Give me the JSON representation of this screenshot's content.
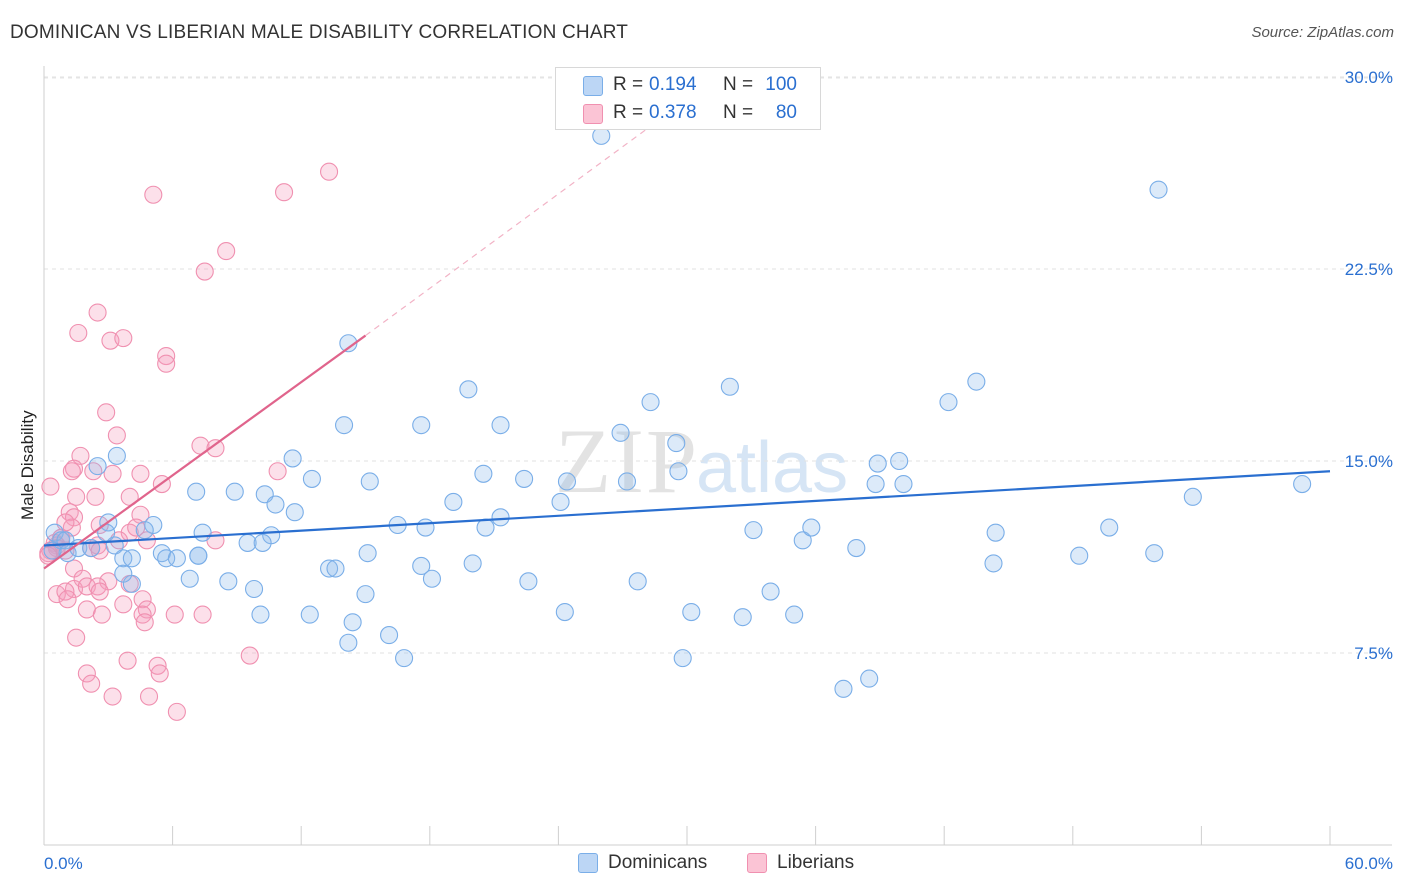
{
  "header": {
    "title": "DOMINICAN VS LIBERIAN MALE DISABILITY CORRELATION CHART",
    "source": "Source: ZipAtlas.com"
  },
  "legend_top": {
    "rows": [
      {
        "r_label": "R =",
        "r_value": "0.194",
        "n_label": "N =",
        "n_value": "100"
      },
      {
        "r_label": "R =",
        "r_value": "0.378",
        "n_label": "N =",
        "n_value": "80"
      }
    ]
  },
  "legend_bottom": {
    "items": [
      {
        "label": "Dominicans"
      },
      {
        "label": "Liberians"
      }
    ]
  },
  "watermark": {
    "zip": "ZIP",
    "atlas": "atlas"
  },
  "chart_data": {
    "type": "scatter",
    "title": "DOMINICAN VS LIBERIAN MALE DISABILITY CORRELATION CHART",
    "xlabel": "",
    "ylabel": "Male Disability",
    "xlim": [
      0,
      60
    ],
    "ylim": [
      0,
      31
    ],
    "x_tick_labels": [
      "0.0%",
      "60.0%"
    ],
    "y_ticks": [
      7.5,
      15.0,
      22.5,
      30.0
    ],
    "y_tick_labels": [
      "7.5%",
      "15.0%",
      "22.5%",
      "30.0%"
    ],
    "grid": "horizontal dashed",
    "legend_position": "top-center and bottom",
    "colors": {
      "Dominicans": "#7aaee8",
      "Liberians": "#f090b0",
      "dom_line": "#2a6fd0",
      "lib_line": "#e0648c"
    },
    "series": [
      {
        "name": "Dominicans",
        "trend": {
          "x0": 0,
          "y0": 11.7,
          "x1": 60,
          "y1": 14.6
        },
        "points": [
          [
            26,
            27.7
          ],
          [
            52,
            25.6
          ],
          [
            14.2,
            19.6
          ],
          [
            43.5,
            18.1
          ],
          [
            32,
            17.9
          ],
          [
            19.8,
            17.8
          ],
          [
            42.2,
            17.3
          ],
          [
            28.3,
            17.3
          ],
          [
            14,
            16.4
          ],
          [
            17.6,
            16.4
          ],
          [
            21.3,
            16.4
          ],
          [
            26.9,
            16.1
          ],
          [
            29.5,
            15.7
          ],
          [
            2.5,
            14.8
          ],
          [
            11.6,
            15.1
          ],
          [
            20.5,
            14.5
          ],
          [
            22.4,
            14.3
          ],
          [
            12.5,
            14.3
          ],
          [
            15.2,
            14.2
          ],
          [
            24.4,
            14.2
          ],
          [
            27.2,
            14.2
          ],
          [
            29.6,
            14.6
          ],
          [
            38.9,
            14.9
          ],
          [
            39.9,
            15
          ],
          [
            38.8,
            14.1
          ],
          [
            40.1,
            14.1
          ],
          [
            58.7,
            14.1
          ],
          [
            53.6,
            13.6
          ],
          [
            3.4,
            15.2
          ],
          [
            8.9,
            13.8
          ],
          [
            7.1,
            13.8
          ],
          [
            10.3,
            13.7
          ],
          [
            5.1,
            12.5
          ],
          [
            10.8,
            13.3
          ],
          [
            11.7,
            13.0
          ],
          [
            19.1,
            13.4
          ],
          [
            24.1,
            13.4
          ],
          [
            21.3,
            12.8
          ],
          [
            3,
            12.6
          ],
          [
            0.5,
            12.2
          ],
          [
            0.8,
            11.9
          ],
          [
            1,
            11.9
          ],
          [
            2.9,
            12.2
          ],
          [
            4.7,
            12.3
          ],
          [
            7.4,
            12.2
          ],
          [
            9.5,
            11.8
          ],
          [
            10.6,
            12.1
          ],
          [
            17.8,
            12.4
          ],
          [
            16.5,
            12.5
          ],
          [
            20.6,
            12.4
          ],
          [
            33.1,
            12.3
          ],
          [
            35.4,
            11.9
          ],
          [
            35.8,
            12.4
          ],
          [
            37.9,
            11.6
          ],
          [
            44.4,
            12.2
          ],
          [
            48.3,
            11.3
          ],
          [
            49.7,
            12.4
          ],
          [
            51.8,
            11.4
          ],
          [
            1.1,
            11.4
          ],
          [
            1.6,
            11.6
          ],
          [
            2.2,
            11.6
          ],
          [
            3.3,
            11.7
          ],
          [
            3.7,
            11.2
          ],
          [
            4.1,
            11.2
          ],
          [
            5.5,
            11.4
          ],
          [
            5.7,
            11.2
          ],
          [
            6.2,
            11.2
          ],
          [
            7.2,
            11.3
          ],
          [
            7.2,
            11.3
          ],
          [
            10.2,
            11.8
          ],
          [
            15.1,
            11.4
          ],
          [
            13.3,
            10.8
          ],
          [
            13.6,
            10.8
          ],
          [
            17.6,
            10.9
          ],
          [
            20.0,
            11.0
          ],
          [
            44.3,
            11.0
          ],
          [
            8.6,
            10.3
          ],
          [
            4.1,
            10.2
          ],
          [
            18.1,
            10.4
          ],
          [
            22.6,
            10.3
          ],
          [
            27.7,
            10.3
          ],
          [
            9.8,
            10.0
          ],
          [
            15.0,
            9.8
          ],
          [
            33.9,
            9.9
          ],
          [
            24.3,
            9.1
          ],
          [
            30.2,
            9.1
          ],
          [
            32.6,
            8.9
          ],
          [
            35.0,
            9.0
          ],
          [
            10.1,
            9.0
          ],
          [
            12.4,
            9.0
          ],
          [
            14.4,
            8.7
          ],
          [
            16.1,
            8.2
          ],
          [
            14.2,
            7.9
          ],
          [
            16.8,
            7.3
          ],
          [
            29.8,
            7.3
          ],
          [
            37.3,
            6.1
          ],
          [
            38.5,
            6.5
          ],
          [
            3.7,
            10.6
          ],
          [
            6.8,
            10.4
          ],
          [
            0.4,
            11.5
          ]
        ]
      },
      {
        "name": "Liberians",
        "trend": {
          "x0": 0,
          "y0": 10.8,
          "x1": 15,
          "y1": 19.9
        },
        "trend_extension": {
          "x0": 15,
          "y0": 19.9,
          "x1": 28.5,
          "y1": 28.2
        },
        "points": [
          [
            13.3,
            26.3
          ],
          [
            11.2,
            25.5
          ],
          [
            5.1,
            25.4
          ],
          [
            8.5,
            23.2
          ],
          [
            7.5,
            22.4
          ],
          [
            2.5,
            20.8
          ],
          [
            1.6,
            20.0
          ],
          [
            3.1,
            19.7
          ],
          [
            3.7,
            19.8
          ],
          [
            5.7,
            19.1
          ],
          [
            5.7,
            18.8
          ],
          [
            2.9,
            16.9
          ],
          [
            3.4,
            16.0
          ],
          [
            7.3,
            15.6
          ],
          [
            8.0,
            15.5
          ],
          [
            1.7,
            15.2
          ],
          [
            1.4,
            14.7
          ],
          [
            1.3,
            14.6
          ],
          [
            2.3,
            14.6
          ],
          [
            3.2,
            14.5
          ],
          [
            4.5,
            14.5
          ],
          [
            10.9,
            14.6
          ],
          [
            5.5,
            14.1
          ],
          [
            0.3,
            14.0
          ],
          [
            1.5,
            13.6
          ],
          [
            2.4,
            13.6
          ],
          [
            4.0,
            13.6
          ],
          [
            4.5,
            12.9
          ],
          [
            1.2,
            13.0
          ],
          [
            1.4,
            12.8
          ],
          [
            2.6,
            12.5
          ],
          [
            1.3,
            12.4
          ],
          [
            1.0,
            12.6
          ],
          [
            4.0,
            12.2
          ],
          [
            4.3,
            12.4
          ],
          [
            0.8,
            12.0
          ],
          [
            0.8,
            12.0
          ],
          [
            0.5,
            11.8
          ],
          [
            0.6,
            11.7
          ],
          [
            0.6,
            11.6
          ],
          [
            0.3,
            11.5
          ],
          [
            0.2,
            11.4
          ],
          [
            0.2,
            11.3
          ],
          [
            1.0,
            11.5
          ],
          [
            2.2,
            11.6
          ],
          [
            2.5,
            11.7
          ],
          [
            2.6,
            11.5
          ],
          [
            3.5,
            11.9
          ],
          [
            4.8,
            11.9
          ],
          [
            8.0,
            11.9
          ],
          [
            1.4,
            10.8
          ],
          [
            1.8,
            10.4
          ],
          [
            3.0,
            10.3
          ],
          [
            4.0,
            10.2
          ],
          [
            1.4,
            10.0
          ],
          [
            2.0,
            10.1
          ],
          [
            2.5,
            10.1
          ],
          [
            0.6,
            9.8
          ],
          [
            1.0,
            9.9
          ],
          [
            2.6,
            9.9
          ],
          [
            1.1,
            9.6
          ],
          [
            4.6,
            9.6
          ],
          [
            3.7,
            9.4
          ],
          [
            4.8,
            9.2
          ],
          [
            2.0,
            9.2
          ],
          [
            2.7,
            9.0
          ],
          [
            4.6,
            9.0
          ],
          [
            6.1,
            9.0
          ],
          [
            7.4,
            9.0
          ],
          [
            4.7,
            8.7
          ],
          [
            1.5,
            8.1
          ],
          [
            9.6,
            7.4
          ],
          [
            3.9,
            7.2
          ],
          [
            5.3,
            7.0
          ],
          [
            5.4,
            6.7
          ],
          [
            2.0,
            6.7
          ],
          [
            2.2,
            6.3
          ],
          [
            3.2,
            5.8
          ],
          [
            4.9,
            5.8
          ],
          [
            6.2,
            5.2
          ]
        ]
      }
    ]
  }
}
